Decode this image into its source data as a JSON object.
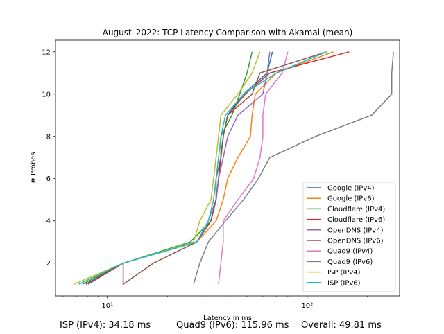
{
  "chart_data": {
    "type": "line",
    "title": "August_2022: TCP Latency Comparison with Akamai (mean)",
    "xlabel": "Latency in ms",
    "ylabel": "# Probes",
    "xscale": "log",
    "xlim": [
      5.5,
      290
    ],
    "ylim": [
      0.45,
      12.55
    ],
    "x_ticks": [
      10,
      100
    ],
    "x_tick_labels": [
      "10¹",
      "10²"
    ],
    "y_ticks": [
      2,
      4,
      6,
      8,
      10,
      12
    ],
    "grid": false,
    "legend": "bottom-right",
    "series": [
      {
        "name": "Google (IPv4)",
        "color": "#1f77b4",
        "points": [
          [
            8,
            1
          ],
          [
            12,
            2
          ],
          [
            28,
            3
          ],
          [
            33,
            4
          ],
          [
            35,
            5
          ],
          [
            36,
            6
          ],
          [
            37,
            7
          ],
          [
            38,
            8
          ],
          [
            40,
            9
          ],
          [
            48,
            10
          ],
          [
            63,
            11
          ],
          [
            67,
            12
          ]
        ]
      },
      {
        "name": "Google (IPv6)",
        "color": "#ff7f0e",
        "points": [
          [
            12,
            1
          ],
          [
            12,
            2
          ],
          [
            28,
            3
          ],
          [
            35,
            4
          ],
          [
            38,
            5
          ],
          [
            40,
            6
          ],
          [
            45,
            7
          ],
          [
            52,
            8
          ],
          [
            53,
            9
          ],
          [
            55,
            10
          ],
          [
            70,
            11
          ],
          [
            135,
            12
          ]
        ]
      },
      {
        "name": "Cloudflare (IPv4)",
        "color": "#2ca02c",
        "points": [
          [
            7.5,
            1
          ],
          [
            12,
            2
          ],
          [
            26,
            3
          ],
          [
            33,
            4
          ],
          [
            35,
            5
          ],
          [
            36,
            6
          ],
          [
            37,
            7
          ],
          [
            37,
            8
          ],
          [
            42,
            9
          ],
          [
            46,
            10
          ],
          [
            50,
            11
          ],
          [
            53,
            12
          ]
        ]
      },
      {
        "name": "Cloudflare (IPv6)",
        "color": "#d62728",
        "points": [
          [
            7.8,
            1
          ],
          [
            12,
            2
          ],
          [
            28,
            3
          ],
          [
            33,
            4
          ],
          [
            35,
            5
          ],
          [
            36,
            6
          ],
          [
            37,
            7
          ],
          [
            38,
            8
          ],
          [
            40,
            9
          ],
          [
            49,
            10
          ],
          [
            65,
            11
          ],
          [
            162,
            12
          ]
        ]
      },
      {
        "name": "OpenDNS (IPv4)",
        "color": "#9467bd",
        "points": [
          [
            12,
            1
          ],
          [
            12,
            2
          ],
          [
            28,
            3
          ],
          [
            32,
            4
          ],
          [
            35,
            5
          ],
          [
            36,
            6
          ],
          [
            38,
            7
          ],
          [
            40,
            8
          ],
          [
            45,
            9
          ],
          [
            60,
            10
          ],
          [
            63,
            11
          ],
          [
            65,
            12
          ]
        ]
      },
      {
        "name": "OpenDNS (IPv6)",
        "color": "#8c564b",
        "points": [
          [
            12,
            1
          ],
          [
            17,
            2
          ],
          [
            28,
            3
          ],
          [
            33,
            4
          ],
          [
            35,
            5
          ],
          [
            35,
            6
          ],
          [
            37,
            7
          ],
          [
            38,
            8
          ],
          [
            40,
            9
          ],
          [
            53,
            10
          ],
          [
            58,
            11
          ],
          [
            125,
            12
          ]
        ]
      },
      {
        "name": "Quad9 (IPv4)",
        "color": "#e377c2",
        "points": [
          [
            36,
            1
          ],
          [
            37,
            2
          ],
          [
            38,
            3
          ],
          [
            38,
            4
          ],
          [
            45,
            5
          ],
          [
            54,
            6
          ],
          [
            58,
            7
          ],
          [
            60,
            8
          ],
          [
            60,
            9
          ],
          [
            62,
            10
          ],
          [
            75,
            11
          ],
          [
            80,
            12
          ]
        ]
      },
      {
        "name": "Quad9 (IPv6)",
        "color": "#7f7f7f",
        "points": [
          [
            27,
            1
          ],
          [
            29,
            2
          ],
          [
            32,
            3
          ],
          [
            39,
            4
          ],
          [
            48,
            5
          ],
          [
            57,
            6
          ],
          [
            65,
            7
          ],
          [
            110,
            8
          ],
          [
            210,
            9
          ],
          [
            265,
            10
          ],
          [
            265,
            11
          ],
          [
            270,
            12
          ]
        ]
      },
      {
        "name": "ISP (IPv4)",
        "color": "#bcbd22",
        "points": [
          [
            6.8,
            1
          ],
          [
            12,
            2
          ],
          [
            27,
            3
          ],
          [
            29,
            4
          ],
          [
            33,
            5
          ],
          [
            34,
            6
          ],
          [
            35,
            7
          ],
          [
            36,
            8
          ],
          [
            37,
            9
          ],
          [
            45,
            10
          ],
          [
            53,
            11
          ],
          [
            58,
            12
          ]
        ]
      },
      {
        "name": "ISP (IPv6)",
        "color": "#17becf",
        "points": [
          [
            7.2,
            1
          ],
          [
            12,
            2
          ],
          [
            28,
            3
          ],
          [
            32,
            4
          ],
          [
            34,
            5
          ],
          [
            35,
            6
          ],
          [
            36,
            7
          ],
          [
            37,
            8
          ],
          [
            39,
            9
          ],
          [
            48,
            10
          ],
          [
            70,
            11
          ],
          [
            125,
            12
          ]
        ]
      }
    ]
  },
  "footer": {
    "isp": "ISP (IPv4): 34.18 ms",
    "quad9": "Quad9 (IPv6): 115.96 ms",
    "overall": "Overall: 49.81 ms"
  }
}
